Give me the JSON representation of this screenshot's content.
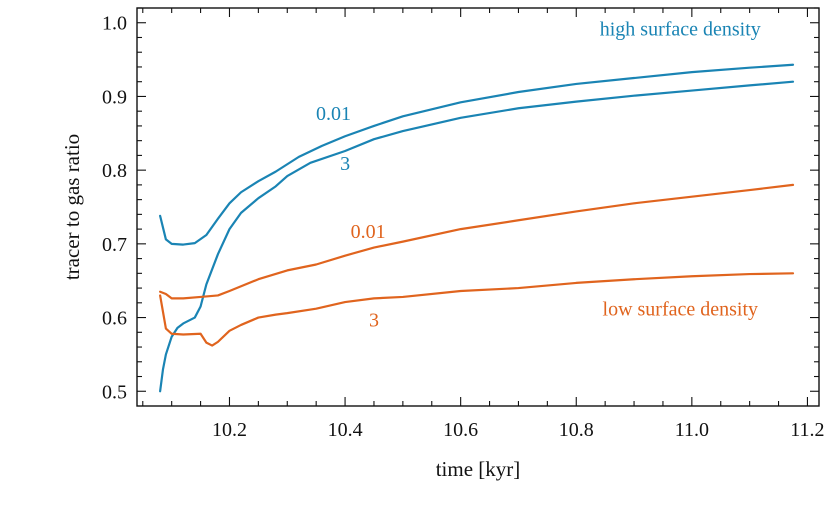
{
  "chart_data": {
    "type": "line",
    "xlabel": "time [kyr]",
    "ylabel": "tracer to gas ratio",
    "xlim": [
      10.04,
      11.22
    ],
    "ylim": [
      0.48,
      1.02
    ],
    "xticks": [
      10.2,
      10.4,
      10.6,
      10.8,
      11.0,
      11.2
    ],
    "xtick_labels": [
      "10.2",
      "10.4",
      "10.6",
      "10.8",
      "11.0",
      "11.2"
    ],
    "yticks": [
      0.5,
      0.6,
      0.7,
      0.8,
      0.9,
      1.0
    ],
    "ytick_labels": [
      "0.5",
      "0.6",
      "0.7",
      "0.8",
      "0.9",
      "1.0"
    ],
    "colors": {
      "high": "#1a84b4",
      "low": "#e0641e"
    },
    "series": [
      {
        "name": "high surface density, 0.01",
        "group": "high",
        "x": [
          10.08,
          10.09,
          10.1,
          10.12,
          10.14,
          10.16,
          10.18,
          10.2,
          10.22,
          10.25,
          10.28,
          10.32,
          10.36,
          10.4,
          10.45,
          10.5,
          10.6,
          10.7,
          10.8,
          10.9,
          11.0,
          11.1,
          11.175
        ],
        "y": [
          0.738,
          0.706,
          0.7,
          0.699,
          0.701,
          0.712,
          0.734,
          0.755,
          0.77,
          0.785,
          0.798,
          0.818,
          0.833,
          0.846,
          0.86,
          0.873,
          0.892,
          0.906,
          0.917,
          0.925,
          0.933,
          0.939,
          0.943
        ]
      },
      {
        "name": "high surface density, 3",
        "group": "high",
        "x": [
          10.08,
          10.085,
          10.09,
          10.1,
          10.11,
          10.12,
          10.14,
          10.15,
          10.16,
          10.18,
          10.2,
          10.22,
          10.25,
          10.28,
          10.3,
          10.34,
          10.4,
          10.45,
          10.5,
          10.6,
          10.7,
          10.8,
          10.9,
          11.0,
          11.1,
          11.175
        ],
        "y": [
          0.5,
          0.53,
          0.55,
          0.574,
          0.586,
          0.592,
          0.6,
          0.615,
          0.645,
          0.686,
          0.72,
          0.742,
          0.762,
          0.778,
          0.792,
          0.81,
          0.826,
          0.842,
          0.853,
          0.871,
          0.884,
          0.893,
          0.901,
          0.908,
          0.915,
          0.92
        ]
      },
      {
        "name": "low surface density, 0.01",
        "group": "low",
        "x": [
          10.08,
          10.09,
          10.1,
          10.12,
          10.15,
          10.18,
          10.2,
          10.25,
          10.3,
          10.35,
          10.4,
          10.45,
          10.5,
          10.6,
          10.7,
          10.8,
          10.9,
          11.0,
          11.1,
          11.175
        ],
        "y": [
          0.635,
          0.632,
          0.626,
          0.626,
          0.628,
          0.63,
          0.636,
          0.652,
          0.664,
          0.672,
          0.684,
          0.695,
          0.703,
          0.72,
          0.732,
          0.744,
          0.755,
          0.764,
          0.773,
          0.78
        ]
      },
      {
        "name": "low surface density, 3",
        "group": "low",
        "x": [
          10.08,
          10.09,
          10.1,
          10.12,
          10.15,
          10.16,
          10.17,
          10.18,
          10.2,
          10.22,
          10.25,
          10.28,
          10.3,
          10.35,
          10.4,
          10.45,
          10.5,
          10.6,
          10.7,
          10.8,
          10.9,
          11.0,
          11.1,
          11.175
        ],
        "y": [
          0.63,
          0.585,
          0.578,
          0.577,
          0.578,
          0.566,
          0.562,
          0.567,
          0.582,
          0.59,
          0.6,
          0.604,
          0.606,
          0.612,
          0.621,
          0.626,
          0.628,
          0.636,
          0.64,
          0.647,
          0.652,
          0.656,
          0.659,
          0.66
        ]
      }
    ],
    "annotations": [
      {
        "text": "high surface density",
        "group": "high",
        "x": 10.98,
        "y": 0.983,
        "anchor": "middle"
      },
      {
        "text": "0.01",
        "group": "high",
        "x": 10.38,
        "y": 0.868,
        "anchor": "middle"
      },
      {
        "text": "3",
        "group": "high",
        "x": 10.4,
        "y": 0.8,
        "anchor": "middle"
      },
      {
        "text": "0.01",
        "group": "low",
        "x": 10.44,
        "y": 0.708,
        "anchor": "middle"
      },
      {
        "text": "3",
        "group": "low",
        "x": 10.45,
        "y": 0.588,
        "anchor": "middle"
      },
      {
        "text": "low surface density",
        "group": "low",
        "x": 10.98,
        "y": 0.603,
        "anchor": "middle"
      }
    ]
  }
}
